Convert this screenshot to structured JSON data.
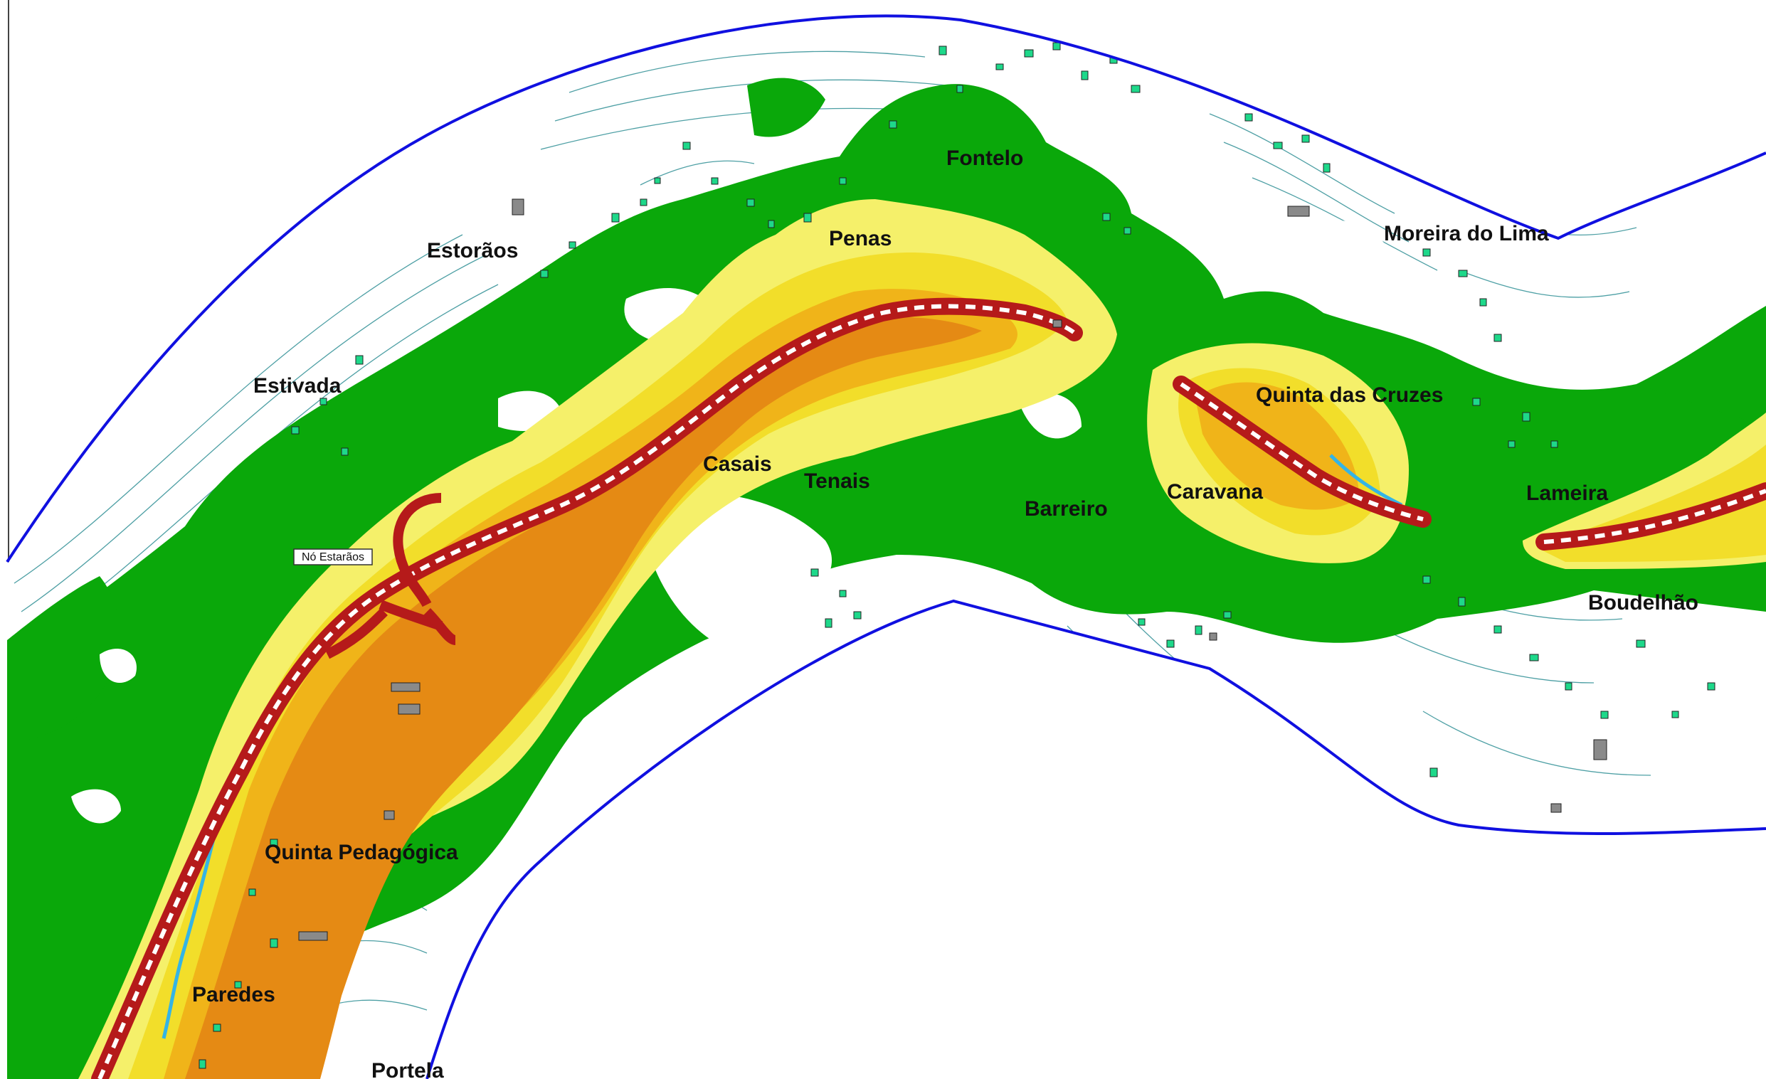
{
  "map": {
    "colors": {
      "background": "#ffffff",
      "boundary": "#1010e0",
      "contour": "#2f8f95",
      "zone_green": "#0aa80a",
      "zone_yellow_light": "#f5f06a",
      "zone_yellow": "#f2de2a",
      "zone_orange": "#f0b419",
      "zone_orange_dark": "#e58a14",
      "road_core": "#b51a1a",
      "road_dash": "#ffffff",
      "building": "#1ed88a",
      "building_grey": "#8a8a8a",
      "stream": "#34b4e6"
    },
    "place_labels": [
      {
        "id": "estoraos",
        "text": "Estorãos"
      },
      {
        "id": "estivada",
        "text": "Estivada"
      },
      {
        "id": "penas",
        "text": "Penas"
      },
      {
        "id": "fontelo",
        "text": "Fontelo"
      },
      {
        "id": "moreira",
        "text": "Moreira do Lima"
      },
      {
        "id": "quinta-cruzes",
        "text": "Quinta das Cruzes"
      },
      {
        "id": "casais",
        "text": "Casais"
      },
      {
        "id": "tenais",
        "text": "Tenais"
      },
      {
        "id": "barreiro",
        "text": "Barreiro"
      },
      {
        "id": "caravana",
        "text": "Caravana"
      },
      {
        "id": "lameira",
        "text": "Lameira"
      },
      {
        "id": "boudelhao",
        "text": "Boudelhão"
      },
      {
        "id": "quinta-pedagogica",
        "text": "Quinta Pedagógica"
      },
      {
        "id": "paredes",
        "text": "Paredes"
      },
      {
        "id": "portela",
        "text": "Portela"
      }
    ],
    "callout": {
      "text": "Nó Estarãos"
    }
  }
}
